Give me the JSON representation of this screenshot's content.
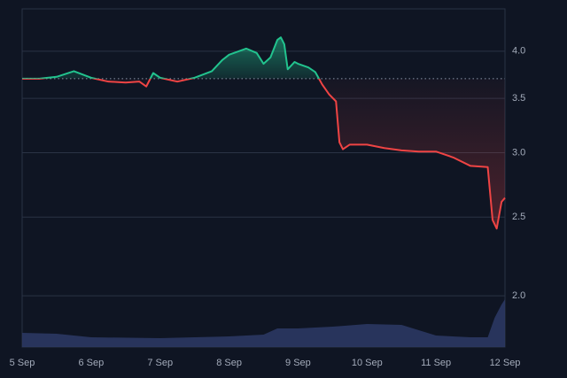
{
  "chart_data": {
    "type": "line",
    "log_scale": true,
    "grid": true,
    "baseline": 3.7,
    "ylim": [
      1.73,
      4.51
    ],
    "yticks": [
      {
        "value": 2,
        "label": "2.0"
      },
      2.5,
      {
        "value": 3,
        "label": "3.0"
      },
      3.5,
      {
        "value": 4,
        "label": "4.0"
      }
    ],
    "xlim": [
      5,
      12
    ],
    "xticks": [
      {
        "value": 5,
        "label": "5 Sep"
      },
      {
        "value": 6,
        "label": "6 Sep"
      },
      {
        "value": 7,
        "label": "7 Sep"
      },
      {
        "value": 8,
        "label": "8 Sep"
      },
      {
        "value": 9,
        "label": "9 Sep"
      },
      {
        "value": 10,
        "label": "10 Sep"
      },
      {
        "value": 11,
        "label": "11 Sep"
      },
      {
        "value": 12,
        "label": "12 Sep"
      }
    ],
    "up_color": "#22c38e",
    "down_color": "#ef4444",
    "series": [
      {
        "x": [
          5,
          5.25,
          5.5,
          5.75,
          6,
          6.25,
          6.5,
          6.7,
          6.8,
          6.9,
          7,
          7.25,
          7.5,
          7.75,
          7.9,
          8,
          8.25,
          8.4,
          8.5,
          8.6,
          8.7,
          8.75,
          8.8,
          8.85,
          8.95,
          9,
          9.15,
          9.25,
          9.35,
          9.45,
          9.55,
          9.6,
          9.65,
          9.75,
          10,
          10.25,
          10.5,
          10.75,
          11,
          11.25,
          11.5,
          11.75,
          11.82,
          11.88,
          11.95,
          12
        ],
        "values": [
          3.7,
          3.7,
          3.72,
          3.78,
          3.71,
          3.67,
          3.66,
          3.67,
          3.62,
          3.76,
          3.71,
          3.67,
          3.71,
          3.78,
          3.9,
          3.96,
          4.03,
          3.98,
          3.86,
          3.93,
          4.13,
          4.16,
          4.08,
          3.8,
          3.88,
          3.86,
          3.82,
          3.77,
          3.64,
          3.54,
          3.47,
          3.09,
          3.03,
          3.07,
          3.07,
          3.04,
          3.02,
          3.01,
          3.01,
          2.96,
          2.89,
          2.88,
          2.48,
          2.42,
          2.61,
          2.64
        ]
      }
    ],
    "volume": {
      "color": "#2d3a66",
      "ylim": [
        0,
        60
      ],
      "x": [
        5,
        5.5,
        6,
        7,
        7.5,
        8,
        8.5,
        8.7,
        9,
        9.5,
        10,
        10.5,
        11,
        11.5,
        11.75,
        11.85,
        11.95,
        12
      ],
      "values": [
        16,
        15,
        11,
        10,
        11,
        12,
        14,
        21,
        21,
        23,
        26,
        25,
        13,
        11,
        11,
        33,
        48,
        54
      ]
    }
  }
}
